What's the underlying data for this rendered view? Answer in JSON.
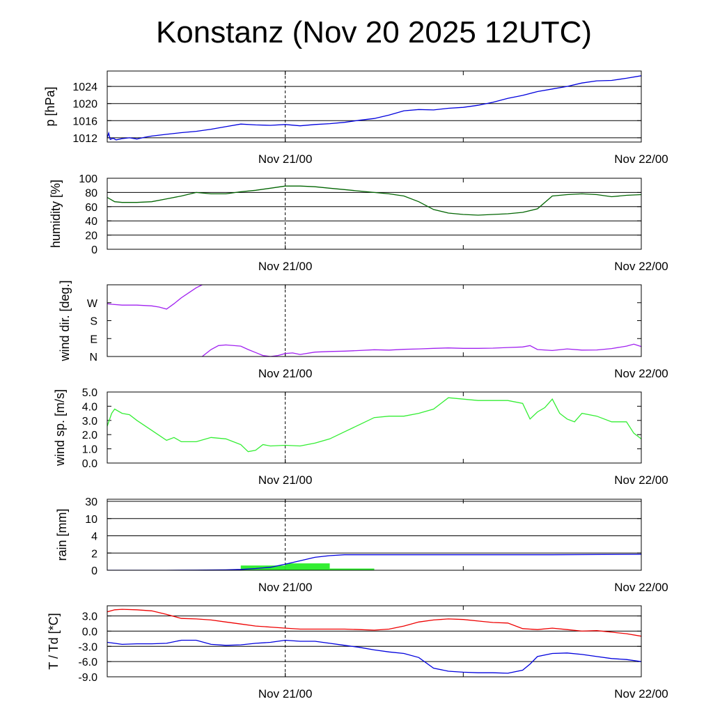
{
  "title": "Konstanz (Nov 20 2025 12UTC)",
  "x_axis": {
    "ticks": [
      {
        "label": "Nov 21/00",
        "hours": 12
      },
      {
        "label": "Nov 22/00",
        "hours": 36
      }
    ],
    "forecast_start_hours": 0,
    "forecast_end_hours": 36,
    "minor_tick_hours": [
      24
    ],
    "dashed_marker_hours": 12
  },
  "chart_data": [
    {
      "type": "line",
      "name": "pressure",
      "ylabel": "p [hPa]",
      "ylim": [
        1011,
        1027.6
      ],
      "yticks": [
        1012,
        1016,
        1020,
        1024
      ],
      "ytick_labels": [
        "1012",
        "1016",
        "1020",
        "1024"
      ],
      "grid": true,
      "color": "#0000dd",
      "series": [
        {
          "x": [
            0,
            0.1,
            0.2,
            0.4,
            0.6,
            1,
            1.5,
            2,
            2.5,
            3,
            4,
            5,
            6,
            7,
            8,
            9,
            10,
            11,
            12,
            13,
            14,
            15,
            16,
            17,
            18,
            19,
            20,
            21,
            22,
            23,
            24,
            25,
            26,
            27,
            28,
            29,
            30,
            31,
            32,
            33,
            34,
            35,
            36
          ],
          "y": [
            1012,
            1013.1,
            1011.6,
            1011.9,
            1011.5,
            1011.8,
            1012,
            1011.7,
            1012.1,
            1012.4,
            1012.8,
            1013.2,
            1013.5,
            1014,
            1014.6,
            1015.2,
            1015,
            1014.9,
            1015.1,
            1014.8,
            1015.1,
            1015.3,
            1015.6,
            1016.1,
            1016.5,
            1017.3,
            1018.3,
            1018.6,
            1018.5,
            1018.9,
            1019.1,
            1019.6,
            1020.3,
            1021.2,
            1021.9,
            1022.8,
            1023.4,
            1024,
            1024.8,
            1025.3,
            1025.4,
            1025.9,
            1026.5
          ]
        }
      ]
    },
    {
      "type": "line",
      "name": "humidity",
      "ylabel": "humidity [%]",
      "ylim": [
        0,
        100
      ],
      "yticks": [
        0,
        20,
        40,
        60,
        80,
        100
      ],
      "ytick_labels": [
        "0",
        "20",
        "40",
        "60",
        "80",
        "100"
      ],
      "grid": true,
      "color": "#006400",
      "series": [
        {
          "x": [
            0,
            0.5,
            1,
            2,
            3,
            4,
            5,
            6,
            7,
            8,
            9,
            10,
            11,
            12,
            13,
            14,
            15,
            16,
            17,
            18,
            19,
            20,
            21,
            22,
            23,
            24,
            25,
            26,
            27,
            28,
            29,
            30,
            31,
            32,
            33,
            34,
            35,
            36
          ],
          "y": [
            73,
            67,
            66,
            66,
            67,
            71,
            75,
            80,
            78,
            78,
            81,
            83,
            86,
            89,
            89,
            88,
            86,
            84,
            82,
            80,
            78,
            75,
            67,
            56,
            51,
            49,
            48,
            49,
            50,
            52,
            57,
            75,
            77,
            78,
            77,
            74,
            76,
            77
          ]
        }
      ]
    },
    {
      "type": "line",
      "name": "wind direction",
      "ylabel": "wind dir. [deg.]",
      "ylim": [
        0,
        360
      ],
      "yticks": [
        0,
        90,
        180,
        270
      ],
      "ytick_labels": [
        "N",
        "E",
        "S",
        "W"
      ],
      "grid": false,
      "color": "#a020f0",
      "series": [
        {
          "x": [
            0,
            0.3,
            1,
            2,
            3,
            3.5,
            4,
            4.5,
            5,
            5.5,
            6,
            6.4
          ],
          "y": [
            265,
            262,
            258,
            258,
            254,
            248,
            238,
            265,
            295,
            320,
            345,
            360
          ]
        },
        {
          "x": [
            6.4,
            7,
            7.5,
            8,
            9,
            9.5,
            10,
            10.5,
            11,
            11.5,
            12,
            12.5,
            13,
            14,
            15,
            16,
            17,
            18,
            19,
            20,
            21,
            22,
            23,
            24,
            25,
            26,
            27,
            28,
            28.5,
            29,
            30,
            31,
            32,
            33,
            34,
            35,
            35.5,
            36
          ],
          "y": [
            0,
            35,
            55,
            58,
            52,
            35,
            20,
            5,
            0,
            5,
            15,
            18,
            10,
            22,
            25,
            27,
            30,
            34,
            32,
            36,
            38,
            41,
            43,
            41,
            41,
            42,
            45,
            48,
            55,
            35,
            30,
            38,
            32,
            33,
            40,
            52,
            62,
            50
          ]
        }
      ]
    },
    {
      "type": "line",
      "name": "wind speed",
      "ylabel": "wind sp. [m/s]",
      "ylim": [
        0,
        5
      ],
      "yticks": [
        0,
        1,
        2,
        3,
        4,
        5
      ],
      "ytick_labels": [
        "0.0",
        "1.0",
        "2.0",
        "3.0",
        "4.0",
        "5.0"
      ],
      "grid": false,
      "color": "#33ee33",
      "series": [
        {
          "x": [
            0,
            0.3,
            0.5,
            1,
            1.5,
            2,
            3,
            4,
            4.5,
            5,
            6,
            7,
            8,
            9,
            9.5,
            10,
            10.5,
            11,
            12,
            13,
            14,
            15,
            16,
            17,
            18,
            19,
            20,
            21,
            22,
            23,
            24,
            25,
            26,
            27,
            28,
            28.5,
            29,
            29.5,
            30,
            30.5,
            31,
            31.5,
            32,
            33,
            34,
            35,
            35.5,
            36
          ],
          "y": [
            2.6,
            3.5,
            3.8,
            3.5,
            3.4,
            3,
            2.3,
            1.6,
            1.8,
            1.5,
            1.5,
            1.8,
            1.7,
            1.3,
            0.8,
            0.9,
            1.3,
            1.2,
            1.25,
            1.2,
            1.4,
            1.7,
            2.2,
            2.7,
            3.2,
            3.3,
            3.3,
            3.5,
            3.8,
            4.6,
            4.5,
            4.4,
            4.4,
            4.4,
            4.2,
            3.1,
            3.6,
            3.9,
            4.5,
            3.5,
            3.1,
            2.9,
            3.5,
            3.3,
            2.9,
            2.9,
            2.1,
            1.7
          ]
        }
      ]
    },
    {
      "type": "bar",
      "name": "rain",
      "ylabel": "rain [mm]",
      "yticks": [
        0,
        2,
        4,
        10,
        30
      ],
      "ytick_labels": [
        "0",
        "2",
        "4",
        "10",
        "30"
      ],
      "grid": true,
      "bar_color": "#33ee33",
      "line_color": "#0000dd",
      "bars": [
        {
          "x_start": 0,
          "x_end": 3,
          "value": 0.02
        },
        {
          "x_start": 3,
          "x_end": 6,
          "value": 0.02
        },
        {
          "x_start": 6,
          "x_end": 9,
          "value": 0.02
        },
        {
          "x_start": 9,
          "x_end": 12,
          "value": 0.55
        },
        {
          "x_start": 12,
          "x_end": 15,
          "value": 0.8
        },
        {
          "x_start": 15,
          "x_end": 18,
          "value": 0.2
        },
        {
          "x_start": 18,
          "x_end": 21,
          "value": 0
        },
        {
          "x_start": 21,
          "x_end": 24,
          "value": 0
        },
        {
          "x_start": 24,
          "x_end": 27,
          "value": 0
        },
        {
          "x_start": 27,
          "x_end": 30,
          "value": 0
        },
        {
          "x_start": 30,
          "x_end": 33,
          "value": 0
        },
        {
          "x_start": 33,
          "x_end": 36,
          "value": 0.02
        }
      ],
      "series": [
        {
          "x": [
            0,
            4,
            6,
            8,
            9,
            10,
            11,
            12,
            13,
            14,
            15,
            16,
            18,
            20,
            24,
            30,
            36
          ],
          "y": [
            0,
            0,
            0.02,
            0.05,
            0.1,
            0.2,
            0.35,
            0.7,
            1.1,
            1.5,
            1.7,
            1.8,
            1.8,
            1.8,
            1.8,
            1.8,
            1.85
          ]
        }
      ]
    },
    {
      "type": "line",
      "name": "temperature / dew point",
      "ylabel": "T / Td [*C]",
      "ylim": [
        -9,
        5
      ],
      "yticks": [
        -9,
        -6,
        -3,
        0,
        3
      ],
      "ytick_labels": [
        "-9.0",
        "-6.0",
        "-3.0",
        "0.0",
        "3.0"
      ],
      "grid": true,
      "series": [
        {
          "color": "#ee0000",
          "x": [
            0,
            0.5,
            1,
            2,
            3,
            4,
            5,
            6,
            7,
            8,
            9,
            10,
            11,
            12,
            13,
            14,
            15,
            16,
            17,
            18,
            19,
            20,
            21,
            22,
            23,
            24,
            25,
            26,
            27,
            28,
            29,
            30,
            31,
            32,
            33,
            34,
            35,
            36
          ],
          "y": [
            3.8,
            4.2,
            4.3,
            4.2,
            4,
            3.3,
            2.5,
            2.4,
            2.2,
            1.8,
            1.4,
            1,
            0.8,
            0.6,
            0.4,
            0.4,
            0.4,
            0.4,
            0.3,
            0.2,
            0.4,
            1,
            1.8,
            2.2,
            2.4,
            2.3,
            2,
            1.7,
            1.6,
            0.5,
            0.3,
            0.6,
            0.3,
            0,
            0.1,
            -0.2,
            -0.5,
            -1
          ]
        },
        {
          "color": "#0000dd",
          "x": [
            0,
            0.5,
            1,
            2,
            3,
            4,
            5,
            6,
            7,
            8,
            9,
            10,
            11,
            12,
            13,
            14,
            15,
            16,
            17,
            18,
            19,
            20,
            21,
            22,
            23,
            24,
            25,
            26,
            27,
            28,
            28.5,
            29,
            30,
            31,
            32,
            33,
            34,
            35,
            36
          ],
          "y": [
            -2.2,
            -2.4,
            -2.6,
            -2.5,
            -2.5,
            -2.4,
            -1.8,
            -1.8,
            -2.6,
            -2.8,
            -2.7,
            -2.4,
            -2.2,
            -1.8,
            -2,
            -2,
            -2.4,
            -2.8,
            -3.2,
            -3.7,
            -4.1,
            -4.4,
            -5.2,
            -7.3,
            -7.9,
            -8.1,
            -8.2,
            -8.2,
            -8.3,
            -7.7,
            -6.5,
            -5,
            -4.4,
            -4.3,
            -4.6,
            -5,
            -5.4,
            -5.6,
            -6
          ]
        }
      ]
    }
  ]
}
